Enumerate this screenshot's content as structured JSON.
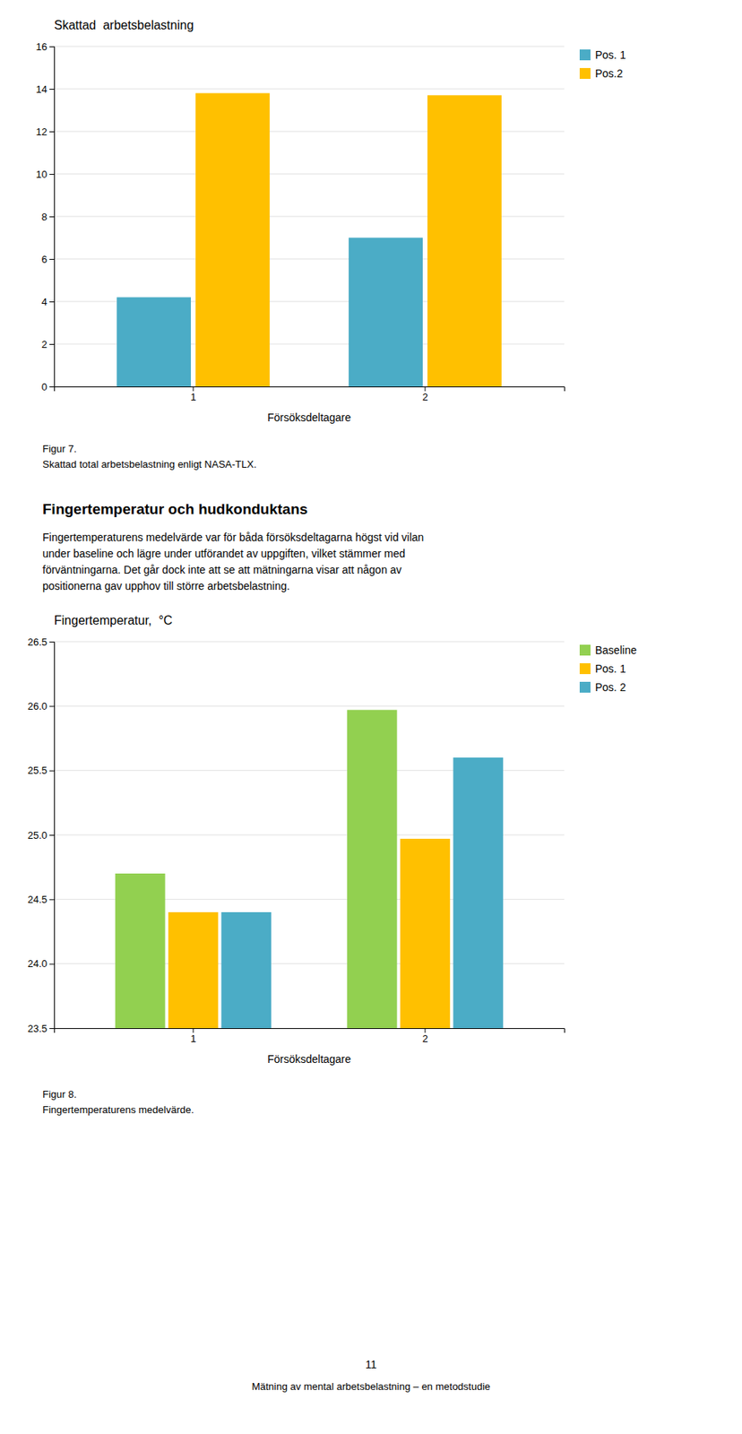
{
  "chart_data": [
    {
      "type": "bar",
      "title": "Skattad  arbetsbelastning",
      "x_label": "Försöksdeltagare",
      "categories": [
        1,
        2
      ],
      "series": [
        {
          "name": "Pos. 1",
          "color": "#4BACC6",
          "values": [
            4.2,
            7.0
          ]
        },
        {
          "name": "Pos.2",
          "color": "#FFC000",
          "values": [
            13.8,
            13.7
          ]
        }
      ],
      "ylim": [
        0,
        16
      ],
      "yticks": [
        0,
        2,
        4,
        6,
        8,
        10,
        12,
        14,
        16
      ],
      "grid": true,
      "legend": "right",
      "caption": [
        "Figur 7.",
        "Skattad total arbetsbelastning enligt NASA-TLX."
      ]
    },
    {
      "type": "bar",
      "title": "Fingertemperatur,  °C",
      "x_label": "Försöksdeltagare",
      "categories": [
        1,
        2
      ],
      "series": [
        {
          "name": "Baseline",
          "color": "#92D050",
          "values": [
            24.7,
            25.97
          ]
        },
        {
          "name": "Pos. 1",
          "color": "#FFC000",
          "values": [
            24.4,
            24.97
          ]
        },
        {
          "name": "Pos. 2",
          "color": "#4BACC6",
          "values": [
            24.4,
            25.6
          ]
        }
      ],
      "ylim": [
        23.5,
        26.5
      ],
      "yticks": [
        23.5,
        {
          "value": 24.0,
          "label": "24.0"
        },
        24.5,
        {
          "value": 25.0,
          "label": "25.0"
        },
        25.5,
        {
          "value": 26.0,
          "label": "26.0"
        },
        26.5
      ],
      "grid": true,
      "legend": "right",
      "caption": [
        "Figur 8.",
        "Fingertemperaturens medelvärde."
      ]
    }
  ],
  "section_title": "Fingertemperatur och hudkonduktans",
  "section_text": [
    "Fingertemperaturens medelvärde var för båda försöksdeltagarna högst vid vilan",
    "under baseline och lägre under utförandet av uppgiften, vilket stämmer med",
    "förväntningarna. Det går dock inte att se att mätningarna visar att någon av",
    "positionerna gav upphov till större arbetsbelastning."
  ],
  "page_number": "11",
  "footer": "Mätning av mental arbetsbelastning – en metodstudie"
}
